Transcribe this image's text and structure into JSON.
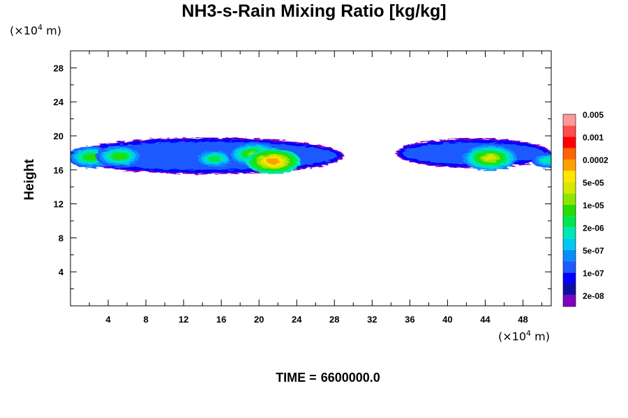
{
  "title": "NH3-s-Rain Mixing Ratio [kg/kg]",
  "unit_y": {
    "base": "(×10",
    "exp": "4",
    "rest": " m)"
  },
  "unit_x": {
    "base": "(×10",
    "exp": "4",
    "rest": " m)"
  },
  "time": {
    "label": "TIME =",
    "value": "6600000.0"
  },
  "chart_data": {
    "type": "heatmap",
    "title": "NH3-s-Rain Mixing Ratio [kg/kg]",
    "xlabel": "",
    "ylabel": "Height",
    "xlim": [
      0,
      51
    ],
    "ylim": [
      0,
      30
    ],
    "x_ticks": [
      4,
      8,
      12,
      16,
      20,
      24,
      28,
      32,
      36,
      40,
      44,
      48
    ],
    "y_ticks": [
      4,
      8,
      12,
      16,
      20,
      24,
      28
    ],
    "legend_position": "right",
    "colorbar": {
      "colors": [
        "#7f00bf",
        "#0f0f9f",
        "#0000ff",
        "#1e5aff",
        "#0a8cff",
        "#00c8f0",
        "#00e6b4",
        "#00e650",
        "#28dc00",
        "#8ce600",
        "#d7e600",
        "#ffe600",
        "#ffa000",
        "#ff6400",
        "#ff0000",
        "#ff4c4c",
        "#ff9999"
      ],
      "labels": [
        "2e-08",
        "1e-07",
        "5e-07",
        "2e-06",
        "1e-05",
        "5e-05",
        "0.0002",
        "0.001",
        "0.005"
      ],
      "label_positions": [
        0.5,
        1.5,
        2.5,
        3.5,
        4.5,
        5.5,
        6.5,
        7.5,
        8.5
      ]
    },
    "features": [
      {
        "x_range": [
          0,
          29
        ],
        "y_range": [
          15.5,
          19.8
        ],
        "layer_level": 2,
        "note": "cloud layer, west"
      },
      {
        "x_range": [
          34.5,
          51
        ],
        "y_range": [
          16.2,
          19.7
        ],
        "layer_level": 2,
        "note": "cloud layer, east"
      }
    ],
    "cores": [
      {
        "x": 2.2,
        "y": 17.5,
        "level": 8
      },
      {
        "x": 5.2,
        "y": 17.6,
        "level": 8
      },
      {
        "x": 15.3,
        "y": 17.3,
        "level": 7
      },
      {
        "x": 19.5,
        "y": 17.8,
        "level": 9
      },
      {
        "x": 21.5,
        "y": 17.0,
        "level": 12
      },
      {
        "x": 44.5,
        "y": 17.4,
        "level": 10
      },
      {
        "x": 50.7,
        "y": 17.1,
        "level": 6
      }
    ]
  }
}
